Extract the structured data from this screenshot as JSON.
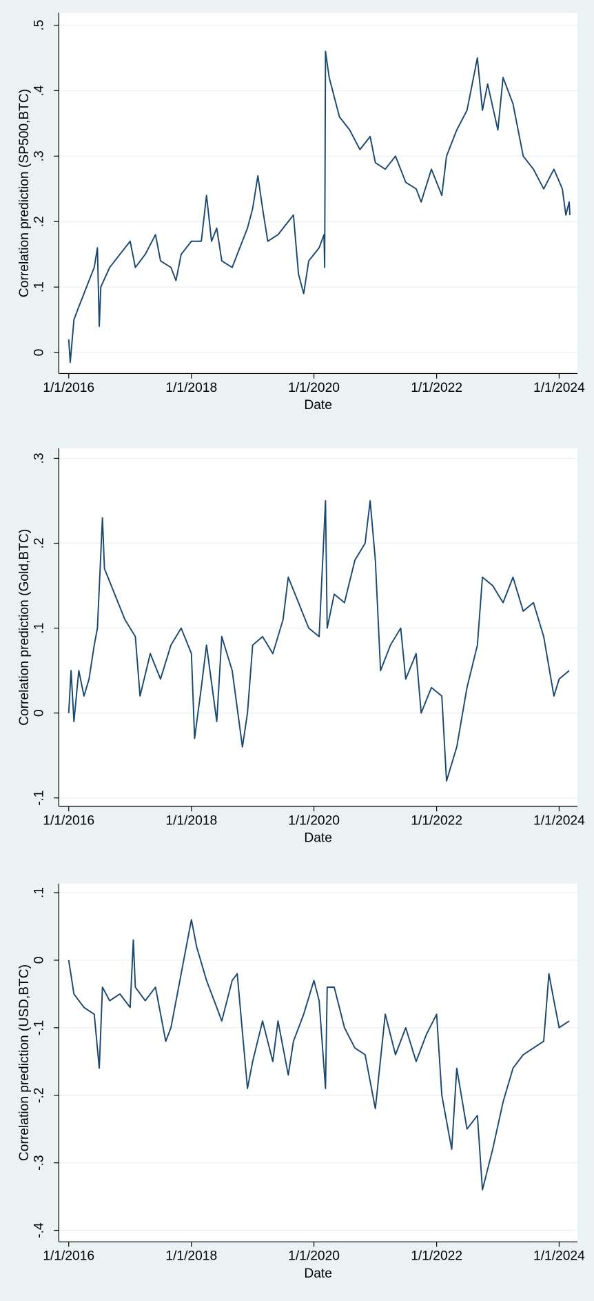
{
  "chart_data": [
    {
      "type": "line",
      "x_label": "Date",
      "y_label": "Correlation prediction (SP500,BTC)",
      "color": "#1a476f",
      "grid": true,
      "xlim": [
        "2015-11-03",
        "2024-04-19"
      ],
      "xticks": [
        {
          "value": "2016-01-01",
          "label": "1/1/2016"
        },
        {
          "value": "2018-01-01",
          "label": "1/1/2018"
        },
        {
          "value": "2020-01-01",
          "label": "1/1/2020"
        },
        {
          "value": "2022-01-01",
          "label": "1/1/2022"
        },
        {
          "value": "2024-01-01",
          "label": "1/1/2024"
        }
      ],
      "ylim": [
        -0.032,
        0.519
      ],
      "yticks": [
        0,
        {
          "value": 0.1,
          "label": ".1"
        },
        {
          "value": 0.2,
          "label": ".2"
        },
        {
          "value": 0.3,
          "label": ".3"
        },
        {
          "value": 0.4,
          "label": ".4"
        },
        {
          "value": 0.5,
          "label": ".5"
        }
      ],
      "x": [
        "2016-01-01",
        "2016-01-10",
        "2016-02-01",
        "2016-03-01",
        "2016-04-01",
        "2016-05-01",
        "2016-06-01",
        "2016-06-20",
        "2016-07-01",
        "2016-07-10",
        "2016-09-01",
        "2016-11-01",
        "2017-01-01",
        "2017-02-01",
        "2017-04-01",
        "2017-06-01",
        "2017-07-01",
        "2017-09-01",
        "2017-10-01",
        "2017-11-01",
        "2018-01-01",
        "2018-03-01",
        "2018-04-01",
        "2018-05-01",
        "2018-06-01",
        "2018-07-01",
        "2018-09-01",
        "2018-10-01",
        "2018-12-01",
        "2019-01-01",
        "2019-02-01",
        "2019-03-01",
        "2019-04-01",
        "2019-06-01",
        "2019-08-01",
        "2019-09-01",
        "2019-10-01",
        "2019-11-01",
        "2019-12-01",
        "2020-01-01",
        "2020-02-01",
        "2020-03-01",
        "2020-03-05",
        "2020-03-10",
        "2020-04-01",
        "2020-06-01",
        "2020-08-01",
        "2020-10-01",
        "2020-12-01",
        "2021-01-01",
        "2021-03-01",
        "2021-05-01",
        "2021-07-01",
        "2021-09-01",
        "2021-10-01",
        "2021-12-01",
        "2022-02-01",
        "2022-03-01",
        "2022-05-01",
        "2022-07-01",
        "2022-08-01",
        "2022-09-01",
        "2022-10-01",
        "2022-11-01",
        "2023-01-01",
        "2023-02-01",
        "2023-04-01",
        "2023-06-01",
        "2023-08-01",
        "2023-10-01",
        "2023-12-01",
        "2024-01-20",
        "2024-02-10",
        "2024-03-01",
        "2024-03-05"
      ],
      "values": [
        0.02,
        -0.015,
        0.05,
        0.07,
        0.09,
        0.11,
        0.13,
        0.16,
        0.04,
        0.1,
        0.13,
        0.15,
        0.17,
        0.13,
        0.15,
        0.18,
        0.14,
        0.13,
        0.11,
        0.15,
        0.17,
        0.17,
        0.24,
        0.17,
        0.19,
        0.14,
        0.13,
        0.15,
        0.19,
        0.22,
        0.27,
        0.22,
        0.17,
        0.18,
        0.2,
        0.21,
        0.12,
        0.09,
        0.14,
        0.15,
        0.16,
        0.18,
        0.13,
        0.46,
        0.42,
        0.36,
        0.34,
        0.31,
        0.33,
        0.29,
        0.28,
        0.3,
        0.26,
        0.25,
        0.23,
        0.28,
        0.24,
        0.3,
        0.34,
        0.37,
        0.41,
        0.45,
        0.37,
        0.41,
        0.34,
        0.42,
        0.38,
        0.3,
        0.28,
        0.25,
        0.28,
        0.25,
        0.21,
        0.23,
        0.21
      ]
    },
    {
      "type": "line",
      "x_label": "Date",
      "y_label": "Correlation prediction (Gold,BTC)",
      "color": "#1a476f",
      "grid": true,
      "xlim": [
        "2015-11-03",
        "2024-04-19"
      ],
      "xticks": [
        {
          "value": "2016-01-01",
          "label": "1/1/2016"
        },
        {
          "value": "2018-01-01",
          "label": "1/1/2018"
        },
        {
          "value": "2020-01-01",
          "label": "1/1/2020"
        },
        {
          "value": "2022-01-01",
          "label": "1/1/2022"
        },
        {
          "value": "2024-01-01",
          "label": "1/1/2024"
        }
      ],
      "ylim": [
        -0.11,
        0.312
      ],
      "yticks": [
        {
          "value": -0.1,
          "label": "-.1"
        },
        0,
        {
          "value": 0.1,
          "label": ".1"
        },
        {
          "value": 0.2,
          "label": ".2"
        },
        {
          "value": 0.3,
          "label": ".3"
        }
      ],
      "x": [
        "2016-01-01",
        "2016-01-15",
        "2016-02-01",
        "2016-03-01",
        "2016-04-01",
        "2016-05-01",
        "2016-06-01",
        "2016-06-20",
        "2016-07-20",
        "2016-08-01",
        "2016-10-01",
        "2016-12-01",
        "2017-02-01",
        "2017-03-01",
        "2017-05-01",
        "2017-07-01",
        "2017-09-01",
        "2017-11-01",
        "2018-01-01",
        "2018-01-20",
        "2018-03-01",
        "2018-04-01",
        "2018-06-01",
        "2018-07-01",
        "2018-09-01",
        "2018-11-01",
        "2018-12-01",
        "2019-01-01",
        "2019-03-01",
        "2019-05-01",
        "2019-07-01",
        "2019-08-01",
        "2019-10-01",
        "2019-12-01",
        "2020-02-01",
        "2020-03-10",
        "2020-03-20",
        "2020-05-01",
        "2020-07-01",
        "2020-09-01",
        "2020-11-01",
        "2020-12-01",
        "2021-01-01",
        "2021-02-01",
        "2021-04-01",
        "2021-06-01",
        "2021-07-01",
        "2021-09-01",
        "2021-10-01",
        "2021-12-01",
        "2022-02-01",
        "2022-03-01",
        "2022-05-01",
        "2022-07-01",
        "2022-09-01",
        "2022-10-01",
        "2022-12-01",
        "2023-02-01",
        "2023-04-01",
        "2023-06-01",
        "2023-08-01",
        "2023-10-01",
        "2023-12-01",
        "2024-01-01",
        "2024-03-01"
      ],
      "values": [
        0.0,
        0.05,
        -0.01,
        0.05,
        0.02,
        0.04,
        0.08,
        0.1,
        0.23,
        0.17,
        0.14,
        0.11,
        0.09,
        0.02,
        0.07,
        0.04,
        0.08,
        0.1,
        0.07,
        -0.03,
        0.03,
        0.08,
        -0.01,
        0.09,
        0.05,
        -0.04,
        0.0,
        0.08,
        0.09,
        0.07,
        0.11,
        0.16,
        0.13,
        0.1,
        0.09,
        0.25,
        0.1,
        0.14,
        0.13,
        0.18,
        0.2,
        0.25,
        0.18,
        0.05,
        0.08,
        0.1,
        0.04,
        0.07,
        0.0,
        0.03,
        0.02,
        -0.08,
        -0.04,
        0.03,
        0.08,
        0.16,
        0.15,
        0.13,
        0.16,
        0.12,
        0.13,
        0.09,
        0.02,
        0.04,
        0.05
      ]
    },
    {
      "type": "line",
      "x_label": "Date",
      "y_label": "Correlation prediction (USD,BTC)",
      "color": "#1a476f",
      "grid": true,
      "xlim": [
        "2015-11-03",
        "2024-04-19"
      ],
      "xticks": [
        {
          "value": "2016-01-01",
          "label": "1/1/2016"
        },
        {
          "value": "2018-01-01",
          "label": "1/1/2018"
        },
        {
          "value": "2020-01-01",
          "label": "1/1/2020"
        },
        {
          "value": "2022-01-01",
          "label": "1/1/2022"
        },
        {
          "value": "2024-01-01",
          "label": "1/1/2024"
        }
      ],
      "ylim": [
        -0.417,
        0.1135
      ],
      "yticks": [
        {
          "value": -0.4,
          "label": "-.4"
        },
        {
          "value": -0.3,
          "label": "-.3"
        },
        {
          "value": -0.2,
          "label": "-.2"
        },
        {
          "value": -0.1,
          "label": "-.1"
        },
        0,
        {
          "value": 0.1,
          "label": ".1"
        }
      ],
      "x": [
        "2016-01-01",
        "2016-02-01",
        "2016-04-01",
        "2016-06-01",
        "2016-07-01",
        "2016-07-20",
        "2016-09-01",
        "2016-11-01",
        "2017-01-01",
        "2017-01-20",
        "2017-02-01",
        "2017-04-01",
        "2017-06-01",
        "2017-08-01",
        "2017-09-01",
        "2017-11-01",
        "2018-01-01",
        "2018-02-01",
        "2018-04-01",
        "2018-06-01",
        "2018-07-01",
        "2018-09-01",
        "2018-10-01",
        "2018-12-01",
        "2019-01-01",
        "2019-03-01",
        "2019-05-01",
        "2019-06-01",
        "2019-08-01",
        "2019-09-01",
        "2019-11-01",
        "2020-01-01",
        "2020-02-01",
        "2020-03-10",
        "2020-03-20",
        "2020-05-01",
        "2020-07-01",
        "2020-09-01",
        "2020-11-01",
        "2021-01-01",
        "2021-03-01",
        "2021-05-01",
        "2021-07-01",
        "2021-09-01",
        "2021-11-01",
        "2022-01-01",
        "2022-02-01",
        "2022-04-01",
        "2022-05-01",
        "2022-07-01",
        "2022-09-01",
        "2022-10-01",
        "2022-12-01",
        "2023-02-01",
        "2023-04-01",
        "2023-06-01",
        "2023-08-01",
        "2023-10-01",
        "2023-11-01",
        "2023-12-01",
        "2024-01-01",
        "2024-03-01"
      ],
      "values": [
        0.0,
        -0.05,
        -0.07,
        -0.08,
        -0.16,
        -0.04,
        -0.06,
        -0.05,
        -0.07,
        0.03,
        -0.04,
        -0.06,
        -0.04,
        -0.12,
        -0.1,
        -0.02,
        0.06,
        0.02,
        -0.03,
        -0.07,
        -0.09,
        -0.03,
        -0.02,
        -0.19,
        -0.15,
        -0.09,
        -0.15,
        -0.09,
        -0.17,
        -0.12,
        -0.08,
        -0.03,
        -0.06,
        -0.19,
        -0.04,
        -0.04,
        -0.1,
        -0.13,
        -0.14,
        -0.22,
        -0.08,
        -0.14,
        -0.1,
        -0.15,
        -0.11,
        -0.08,
        -0.2,
        -0.28,
        -0.16,
        -0.25,
        -0.23,
        -0.34,
        -0.28,
        -0.21,
        -0.16,
        -0.14,
        -0.13,
        -0.12,
        -0.02,
        -0.06,
        -0.1,
        -0.09
      ]
    }
  ]
}
